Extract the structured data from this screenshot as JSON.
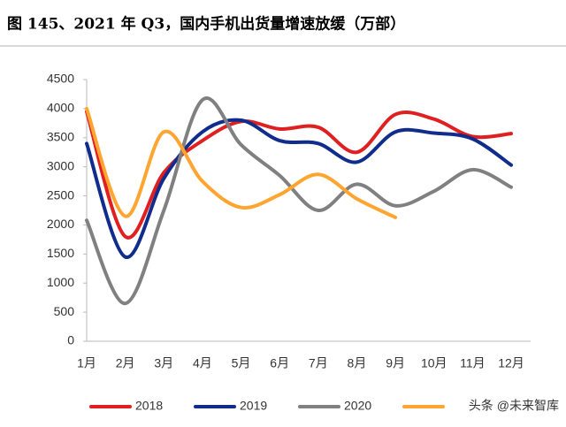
{
  "chart_data": {
    "type": "line",
    "title": "图 145、2021 年 Q3，国内手机出货量增速放缓（万部）",
    "categories": [
      "1月",
      "2月",
      "3月",
      "4月",
      "5月",
      "6月",
      "7月",
      "8月",
      "9月",
      "10月",
      "11月",
      "12月"
    ],
    "series": [
      {
        "name": "2018",
        "color": "#e02020",
        "values": [
          3950,
          1800,
          2900,
          3450,
          3780,
          3650,
          3680,
          3250,
          3900,
          3820,
          3520,
          3570
        ]
      },
      {
        "name": "2019",
        "color": "#102c8c",
        "values": [
          3400,
          1450,
          2800,
          3600,
          3800,
          3450,
          3400,
          3080,
          3600,
          3580,
          3480,
          3030
        ]
      },
      {
        "name": "2020",
        "color": "#808080",
        "values": [
          2080,
          650,
          2250,
          4150,
          3380,
          2850,
          2250,
          2700,
          2330,
          2580,
          2950,
          2650
        ]
      },
      {
        "name": null,
        "color": "#ffa530",
        "values": [
          4000,
          2150,
          3600,
          2750,
          2300,
          2520,
          2870,
          2450,
          2130,
          null,
          null,
          null
        ]
      }
    ],
    "ylim": [
      0,
      4500
    ],
    "yticks": [
      0,
      500,
      1000,
      1500,
      2000,
      2500,
      3000,
      3500,
      4000,
      4500
    ],
    "grid": false,
    "legend": "bottom",
    "watermark": "头条 @未来智库"
  }
}
